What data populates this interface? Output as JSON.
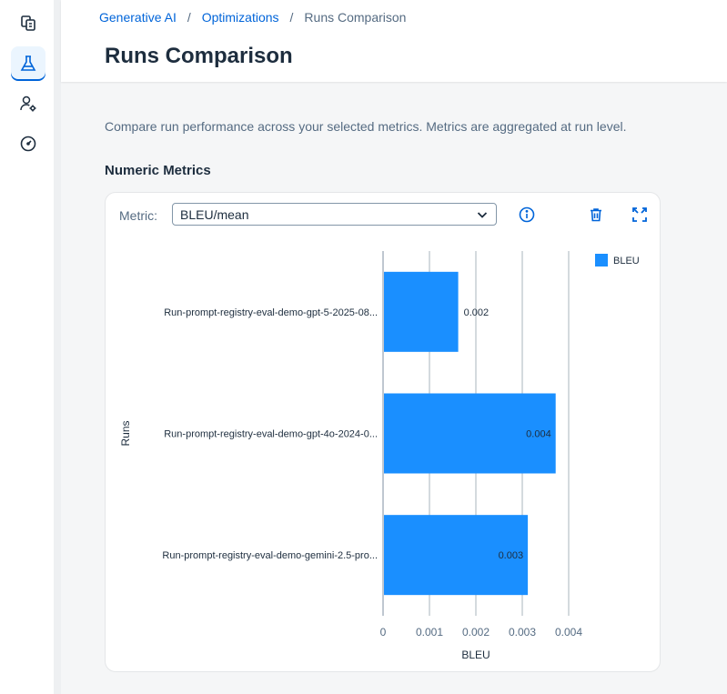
{
  "sidebar": {
    "items": [
      {
        "icon": "documents-icon",
        "active": false
      },
      {
        "icon": "lab-flask-icon",
        "active": true
      },
      {
        "icon": "user-settings-icon",
        "active": false
      },
      {
        "icon": "dashboard-gauge-icon",
        "active": false
      }
    ]
  },
  "breadcrumb": {
    "items": [
      "Generative AI",
      "Optimizations"
    ],
    "separator": "/",
    "current": "Runs Comparison"
  },
  "page": {
    "title": "Runs Comparison",
    "description": "Compare run performance across your selected metrics. Metrics are aggregated at run level.",
    "section_title": "Numeric Metrics"
  },
  "metric_selector": {
    "label": "Metric:",
    "value": "BLEU/mean"
  },
  "toolbar": {
    "info_icon": "info-icon",
    "delete_icon": "delete-icon",
    "fullscreen_icon": "fullscreen-icon"
  },
  "colors": {
    "accent": "#0064d9",
    "bar": "#1a8fff"
  },
  "chart_data": {
    "type": "bar",
    "orientation": "horizontal",
    "categories": [
      "Run-prompt-registry-eval-demo-gpt-5-2025-08...",
      "Run-prompt-registry-eval-demo-gpt-4o-2024-0...",
      "Run-prompt-registry-eval-demo-gemini-2.5-pro..."
    ],
    "series": [
      {
        "name": "BLEU",
        "values": [
          0.0016,
          0.0037,
          0.0031
        ],
        "labels": [
          "0.002",
          "0.004",
          "0.003"
        ]
      }
    ],
    "xlabel": "BLEU",
    "ylabel": "Runs",
    "xlim": [
      0,
      0.004
    ],
    "xticks": [
      "0",
      "0.001",
      "0.002",
      "0.003",
      "0.004"
    ],
    "grid": true,
    "legend": "top-right"
  }
}
